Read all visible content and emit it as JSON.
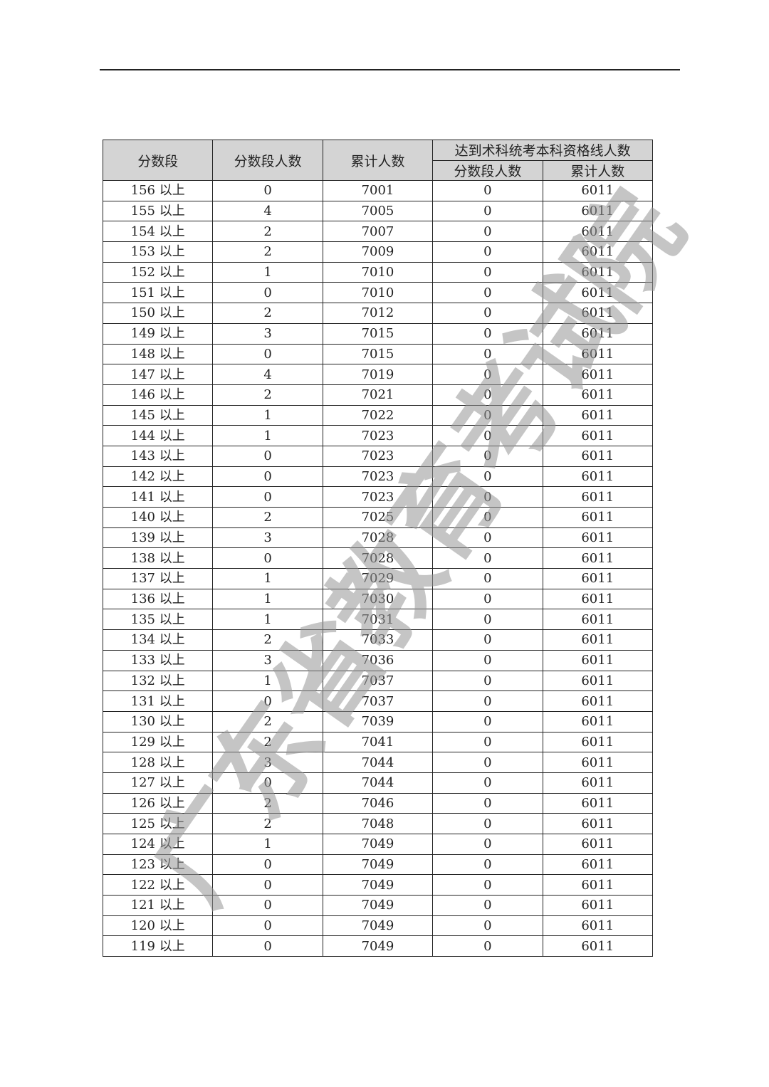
{
  "header": {
    "score_band": "分数段",
    "band_count": "分数段人数",
    "cumulative": "累计人数",
    "qualified_group": "达到术科统考本科资格线人数",
    "qualified_band_count": "分数段人数",
    "qualified_cumulative": "累计人数"
  },
  "watermark": "广东省教育考试院",
  "rows": [
    [
      "156 以上",
      "0",
      "7001",
      "0",
      "6011"
    ],
    [
      "155 以上",
      "4",
      "7005",
      "0",
      "6011"
    ],
    [
      "154 以上",
      "2",
      "7007",
      "0",
      "6011"
    ],
    [
      "153 以上",
      "2",
      "7009",
      "0",
      "6011"
    ],
    [
      "152 以上",
      "1",
      "7010",
      "0",
      "6011"
    ],
    [
      "151 以上",
      "0",
      "7010",
      "0",
      "6011"
    ],
    [
      "150 以上",
      "2",
      "7012",
      "0",
      "6011"
    ],
    [
      "149 以上",
      "3",
      "7015",
      "0",
      "6011"
    ],
    [
      "148 以上",
      "0",
      "7015",
      "0",
      "6011"
    ],
    [
      "147 以上",
      "4",
      "7019",
      "0",
      "6011"
    ],
    [
      "146 以上",
      "2",
      "7021",
      "0",
      "6011"
    ],
    [
      "145 以上",
      "1",
      "7022",
      "0",
      "6011"
    ],
    [
      "144 以上",
      "1",
      "7023",
      "0",
      "6011"
    ],
    [
      "143 以上",
      "0",
      "7023",
      "0",
      "6011"
    ],
    [
      "142 以上",
      "0",
      "7023",
      "0",
      "6011"
    ],
    [
      "141 以上",
      "0",
      "7023",
      "0",
      "6011"
    ],
    [
      "140 以上",
      "2",
      "7025",
      "0",
      "6011"
    ],
    [
      "139 以上",
      "3",
      "7028",
      "0",
      "6011"
    ],
    [
      "138 以上",
      "0",
      "7028",
      "0",
      "6011"
    ],
    [
      "137 以上",
      "1",
      "7029",
      "0",
      "6011"
    ],
    [
      "136 以上",
      "1",
      "7030",
      "0",
      "6011"
    ],
    [
      "135 以上",
      "1",
      "7031",
      "0",
      "6011"
    ],
    [
      "134 以上",
      "2",
      "7033",
      "0",
      "6011"
    ],
    [
      "133 以上",
      "3",
      "7036",
      "0",
      "6011"
    ],
    [
      "132 以上",
      "1",
      "7037",
      "0",
      "6011"
    ],
    [
      "131 以上",
      "0",
      "7037",
      "0",
      "6011"
    ],
    [
      "130 以上",
      "2",
      "7039",
      "0",
      "6011"
    ],
    [
      "129 以上",
      "2",
      "7041",
      "0",
      "6011"
    ],
    [
      "128 以上",
      "3",
      "7044",
      "0",
      "6011"
    ],
    [
      "127 以上",
      "0",
      "7044",
      "0",
      "6011"
    ],
    [
      "126 以上",
      "2",
      "7046",
      "0",
      "6011"
    ],
    [
      "125 以上",
      "2",
      "7048",
      "0",
      "6011"
    ],
    [
      "124 以上",
      "1",
      "7049",
      "0",
      "6011"
    ],
    [
      "123 以上",
      "0",
      "7049",
      "0",
      "6011"
    ],
    [
      "122 以上",
      "0",
      "7049",
      "0",
      "6011"
    ],
    [
      "121 以上",
      "0",
      "7049",
      "0",
      "6011"
    ],
    [
      "120 以上",
      "0",
      "7049",
      "0",
      "6011"
    ],
    [
      "119 以上",
      "0",
      "7049",
      "0",
      "6011"
    ]
  ]
}
